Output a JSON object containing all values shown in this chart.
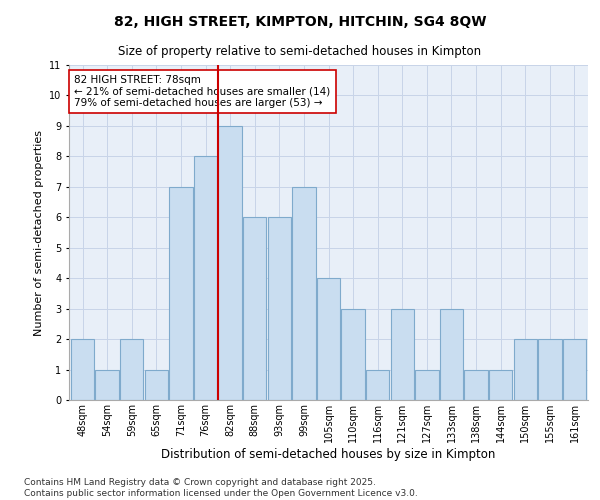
{
  "title1": "82, HIGH STREET, KIMPTON, HITCHIN, SG4 8QW",
  "title2": "Size of property relative to semi-detached houses in Kimpton",
  "xlabel": "Distribution of semi-detached houses by size in Kimpton",
  "ylabel": "Number of semi-detached properties",
  "bins": [
    "48sqm",
    "54sqm",
    "59sqm",
    "65sqm",
    "71sqm",
    "76sqm",
    "82sqm",
    "88sqm",
    "93sqm",
    "99sqm",
    "105sqm",
    "110sqm",
    "116sqm",
    "121sqm",
    "127sqm",
    "133sqm",
    "138sqm",
    "144sqm",
    "150sqm",
    "155sqm",
    "161sqm"
  ],
  "counts": [
    2,
    1,
    2,
    1,
    7,
    8,
    9,
    6,
    6,
    7,
    4,
    3,
    1,
    3,
    1,
    3,
    1,
    1,
    2,
    2,
    2
  ],
  "highlight_index": 6,
  "bar_color": "#c9ddf0",
  "bar_edge_color": "#7faacc",
  "highlight_line_color": "#cc0000",
  "annotation_text": "82 HIGH STREET: 78sqm\n← 21% of semi-detached houses are smaller (14)\n79% of semi-detached houses are larger (53) →",
  "annotation_box_color": "#ffffff",
  "annotation_box_edge": "#cc0000",
  "ylim": [
    0,
    11
  ],
  "yticks": [
    0,
    1,
    2,
    3,
    4,
    5,
    6,
    7,
    8,
    9,
    10,
    11
  ],
  "grid_color": "#c8d4e8",
  "background_color": "#e8eff8",
  "footnote": "Contains HM Land Registry data © Crown copyright and database right 2025.\nContains public sector information licensed under the Open Government Licence v3.0.",
  "title1_fontsize": 10,
  "title2_fontsize": 8.5,
  "xlabel_fontsize": 8.5,
  "ylabel_fontsize": 8,
  "tick_fontsize": 7,
  "annotation_fontsize": 7.5,
  "footnote_fontsize": 6.5
}
